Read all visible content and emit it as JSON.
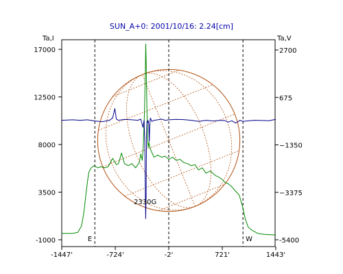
{
  "chart_data": {
    "type": "line",
    "title": "SUN_A+0: 2001/10/16: 2.24[cm]",
    "left_axis_label": "Ta,I",
    "right_axis_label": "Ta,V",
    "xlim": [
      -1447,
      1443
    ],
    "x_ticks": [
      {
        "value": -1447,
        "label": "-1447'"
      },
      {
        "value": -724,
        "label": "-724'"
      },
      {
        "value": -2,
        "label": "-2'"
      },
      {
        "value": 721,
        "label": "721'"
      },
      {
        "value": 1443,
        "label": "1443'"
      }
    ],
    "ylim_left": [
      -1000,
      17800
    ],
    "yticks_left": [
      17000,
      12500,
      8000,
      3500,
      -1000
    ],
    "ylim_right": [
      -5400,
      2700
    ],
    "yticks_right": [
      {
        "value": 2700,
        "label": "2700"
      },
      {
        "value": 675,
        "label": "675"
      },
      {
        "value": -1350,
        "label": "−1350"
      },
      {
        "value": -3375,
        "label": "−3375"
      },
      {
        "value": -5400,
        "label": "-5400"
      }
    ],
    "vertical_markers": [
      {
        "x": -1000,
        "label": "E"
      },
      {
        "x": -2,
        "label": ""
      },
      {
        "x": 1000,
        "label": "W"
      }
    ],
    "solar_disk": {
      "center_x": -2,
      "radius_arcmin": 960,
      "color": "#b05010"
    },
    "annotations": [
      {
        "text": "2330G",
        "x": -320,
        "y_left": 3000
      }
    ],
    "series": [
      {
        "axis": "left",
        "color": "#008800",
        "points": [
          [
            -1447,
            -400
          ],
          [
            -1300,
            -400
          ],
          [
            -1230,
            -300
          ],
          [
            -1180,
            300
          ],
          [
            -1150,
            1500
          ],
          [
            -1120,
            3300
          ],
          [
            -1100,
            4500
          ],
          [
            -1080,
            5400
          ],
          [
            -1050,
            5800
          ],
          [
            -1010,
            6000
          ],
          [
            -960,
            5800
          ],
          [
            -920,
            5900
          ],
          [
            -870,
            5800
          ],
          [
            -820,
            5900
          ],
          [
            -760,
            6700
          ],
          [
            -710,
            6100
          ],
          [
            -680,
            6200
          ],
          [
            -640,
            7200
          ],
          [
            -600,
            6200
          ],
          [
            -550,
            6000
          ],
          [
            -500,
            6200
          ],
          [
            -450,
            5800
          ],
          [
            -400,
            6300
          ],
          [
            -380,
            7100
          ],
          [
            -360,
            6500
          ],
          [
            -345,
            8000
          ],
          [
            -330,
            11000
          ],
          [
            -318,
            15000
          ],
          [
            -312,
            17500
          ],
          [
            -306,
            15500
          ],
          [
            -298,
            12000
          ],
          [
            -290,
            9000
          ],
          [
            -280,
            7700
          ],
          [
            -270,
            8200
          ],
          [
            -255,
            7700
          ],
          [
            -240,
            7400
          ],
          [
            -200,
            6800
          ],
          [
            -150,
            7000
          ],
          [
            -100,
            6800
          ],
          [
            -50,
            6900
          ],
          [
            0,
            6600
          ],
          [
            50,
            6800
          ],
          [
            100,
            6500
          ],
          [
            150,
            6600
          ],
          [
            200,
            6300
          ],
          [
            250,
            6200
          ],
          [
            300,
            6000
          ],
          [
            350,
            6100
          ],
          [
            400,
            5600
          ],
          [
            450,
            5800
          ],
          [
            500,
            5300
          ],
          [
            560,
            5500
          ],
          [
            620,
            5100
          ],
          [
            680,
            4900
          ],
          [
            720,
            4700
          ],
          [
            760,
            4400
          ],
          [
            800,
            4300
          ],
          [
            850,
            4000
          ],
          [
            900,
            3600
          ],
          [
            950,
            3200
          ],
          [
            1000,
            2000
          ],
          [
            1030,
            1000
          ],
          [
            1070,
            200
          ],
          [
            1120,
            -100
          ],
          [
            1200,
            -400
          ],
          [
            1300,
            -500
          ],
          [
            1443,
            -550
          ]
        ]
      },
      {
        "axis": "right",
        "color": "#00008b",
        "points": [
          [
            -1447,
            -300
          ],
          [
            -1300,
            -280
          ],
          [
            -1200,
            -300
          ],
          [
            -1100,
            -280
          ],
          [
            -1000,
            -330
          ],
          [
            -900,
            -360
          ],
          [
            -800,
            -300
          ],
          [
            -760,
            -200
          ],
          [
            -730,
            200
          ],
          [
            -710,
            -250
          ],
          [
            -680,
            -300
          ],
          [
            -600,
            -260
          ],
          [
            -500,
            -280
          ],
          [
            -420,
            -300
          ],
          [
            -380,
            -250
          ],
          [
            -350,
            -600
          ],
          [
            -335,
            -300
          ],
          [
            -325,
            -1200
          ],
          [
            -318,
            -3500
          ],
          [
            -313,
            -4500
          ],
          [
            -308,
            -3500
          ],
          [
            -302,
            -1000
          ],
          [
            -296,
            -350
          ],
          [
            -288,
            -400
          ],
          [
            -280,
            -300
          ],
          [
            -272,
            -500
          ],
          [
            -265,
            -1200
          ],
          [
            -258,
            -500
          ],
          [
            -250,
            -200
          ],
          [
            -230,
            -350
          ],
          [
            -200,
            -300
          ],
          [
            -150,
            -280
          ],
          [
            -100,
            -250
          ],
          [
            -50,
            -300
          ],
          [
            0,
            -280
          ],
          [
            100,
            -260
          ],
          [
            200,
            -270
          ],
          [
            300,
            -300
          ],
          [
            400,
            -350
          ],
          [
            500,
            -300
          ],
          [
            600,
            -330
          ],
          [
            700,
            -300
          ],
          [
            760,
            -320
          ],
          [
            800,
            -380
          ],
          [
            850,
            -320
          ],
          [
            900,
            -420
          ],
          [
            960,
            -300
          ],
          [
            1000,
            -350
          ],
          [
            1050,
            -330
          ],
          [
            1150,
            -300
          ],
          [
            1250,
            -310
          ],
          [
            1350,
            -320
          ],
          [
            1443,
            -260
          ]
        ]
      }
    ]
  }
}
